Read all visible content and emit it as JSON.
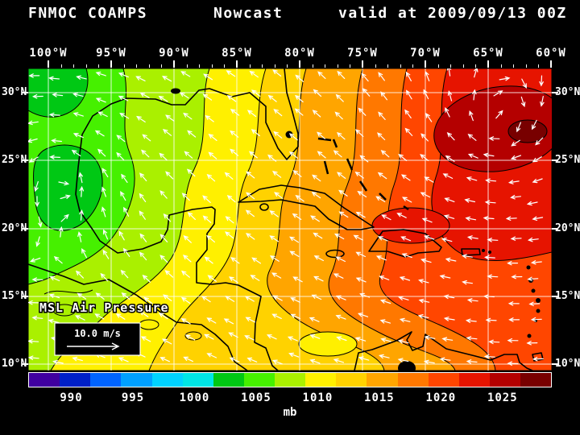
{
  "header": {
    "model": "FNMOC COAMPS",
    "product": "Nowcast",
    "valid": "valid at 2009/09/13 00Z"
  },
  "map": {
    "field_label": "MSL Air Pressure",
    "wind_scale_label": "10.0 m/s",
    "lon_labels": [
      "100°W",
      "95°W",
      "90°W",
      "85°W",
      "80°W",
      "75°W",
      "70°W",
      "65°W",
      "60°W"
    ],
    "lat_labels": [
      "30°N",
      "25°N",
      "20°N",
      "15°N",
      "10°N"
    ]
  },
  "colorbar": {
    "unit": "mb",
    "min": 986.5,
    "max": 1029,
    "tick_values": [
      990,
      995,
      1000,
      1005,
      1010,
      1015,
      1020,
      1025
    ],
    "colors": [
      "#4000A0",
      "#0020C8",
      "#0064FF",
      "#00A0FF",
      "#00D2FF",
      "#00E6E6",
      "#00C814",
      "#46F000",
      "#AAF000",
      "#FFF000",
      "#FFD200",
      "#FFA500",
      "#FF7800",
      "#FF4600",
      "#E61400",
      "#B40000",
      "#780000"
    ]
  },
  "chart_data": {
    "type": "heatmap",
    "title": "FNMOC COAMPS Nowcast valid at 2009/09/13 00Z",
    "field": "MSL Air Pressure",
    "units": "mb",
    "x_axis": {
      "label": "Longitude",
      "ticks": [
        "100°W",
        "95°W",
        "90°W",
        "85°W",
        "80°W",
        "75°W",
        "70°W",
        "65°W",
        "60°W"
      ]
    },
    "y_axis": {
      "label": "Latitude",
      "ticks": [
        "30°N",
        "25°N",
        "20°N",
        "15°N",
        "10°N"
      ]
    },
    "colorbar_range_mb": [
      986.5,
      1029
    ],
    "colorbar_ticks_mb": [
      990,
      995,
      1000,
      1005,
      1010,
      1015,
      1020,
      1025
    ],
    "grid": {
      "lon_deg_w": [
        100,
        95,
        90,
        85,
        80,
        75,
        70,
        65,
        60
      ],
      "lat_deg_n": [
        30,
        25,
        20,
        15,
        10
      ],
      "pressure_mb": [
        [
          1004,
          1007,
          1009,
          1011,
          1013,
          1016,
          1018,
          1021,
          1019
        ],
        [
          1004,
          1006,
          1009,
          1011,
          1013,
          1015,
          1017,
          1020,
          1020
        ],
        [
          1006,
          1008,
          1010,
          1011,
          1013,
          1015,
          1016,
          1016,
          1016
        ],
        [
          1008,
          1009,
          1010,
          1011,
          1012,
          1014,
          1015,
          1015,
          1015
        ],
        [
          1009,
          1010,
          1010,
          1011,
          1010,
          1012,
          1013,
          1013,
          1013
        ]
      ]
    },
    "features": [
      {
        "type": "low",
        "desc": "weak low (~1004 mb, green) over Texas and northeastern Mexico"
      },
      {
        "type": "high",
        "desc": "subtropical high (~1020-1022 mb, dark red core) over western Atlantic near 63W 28N"
      },
      {
        "type": "low",
        "desc": "closed ~1010 mb contour (yellow) over southwest Caribbean near 78W 12N"
      },
      {
        "type": "wind",
        "desc": "easterly trade-wind vectors across Caribbean; anticyclonic turning around Atlantic high"
      }
    ],
    "wind_vector_scale": "10.0 m/s"
  }
}
